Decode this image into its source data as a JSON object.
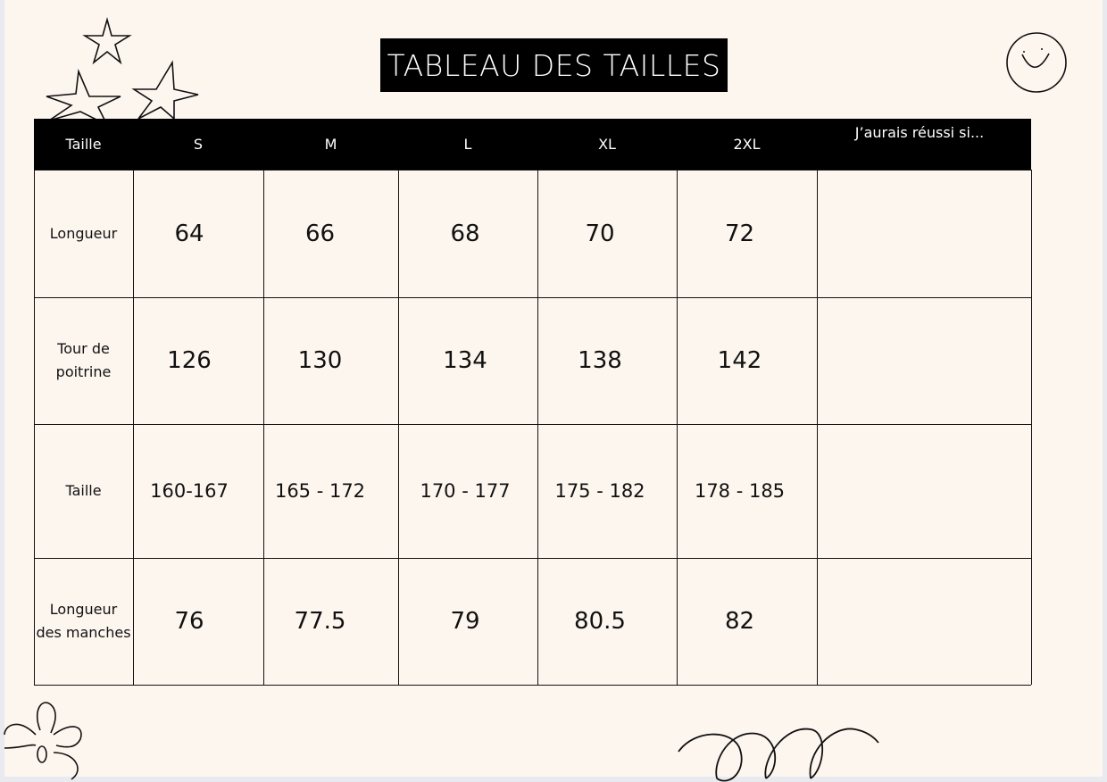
{
  "title": "TABLEAU DES TAILLES",
  "table": {
    "headers": [
      "Taille",
      "S",
      "M",
      "L",
      "XL",
      "2XL",
      "J’aurais réussi si..."
    ],
    "rows": [
      {
        "label": "Longueur",
        "values": [
          "64",
          "66",
          "68",
          "70",
          "72",
          ""
        ]
      },
      {
        "label": "Tour de poitrine",
        "values": [
          "126",
          "130",
          "134",
          "138",
          "142",
          ""
        ]
      },
      {
        "label": "Taille",
        "values": [
          "160-167",
          "165 - 172",
          "170 - 177",
          "175 - 182",
          "178 - 185",
          ""
        ]
      },
      {
        "label": "Longueur des manches",
        "values": [
          "76",
          "77.5",
          "79",
          "80.5",
          "82",
          ""
        ]
      }
    ]
  },
  "decorations": [
    "stars-icon",
    "smiley-icon",
    "flower-icon",
    "loops-icon"
  ]
}
